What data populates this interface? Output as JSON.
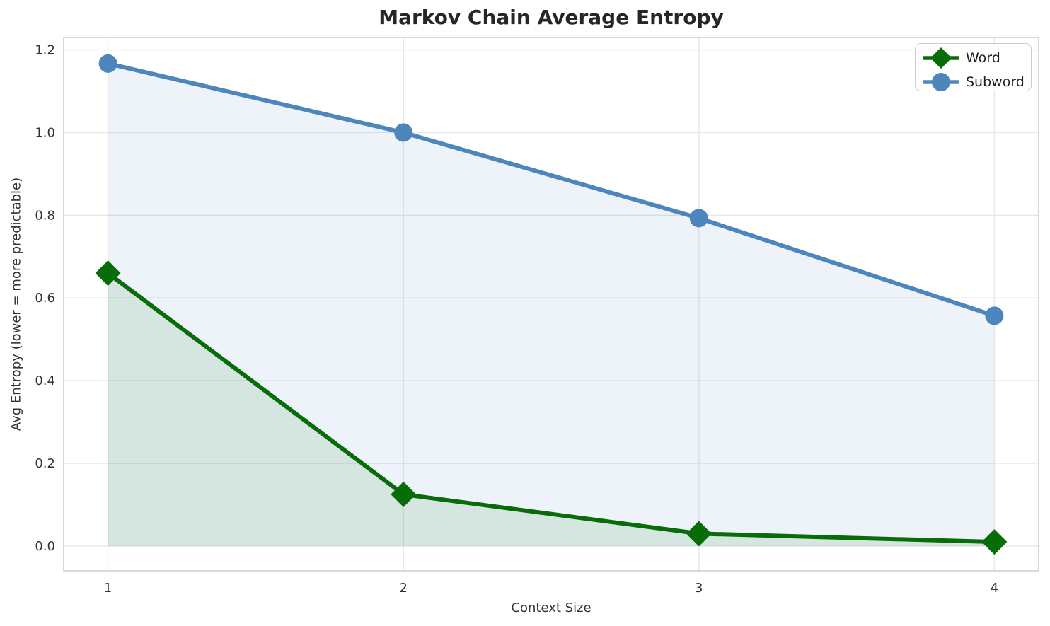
{
  "chart_data": {
    "type": "line",
    "title": "Markov Chain Average Entropy",
    "xlabel": "Context Size",
    "ylabel": "Avg Entropy (lower = more predictable)",
    "x": [
      1,
      2,
      3,
      4
    ],
    "xticks": [
      "1",
      "2",
      "3",
      "4"
    ],
    "yticks": [
      "0.0",
      "0.2",
      "0.4",
      "0.6",
      "0.8",
      "1.0",
      "1.2"
    ],
    "xlim": [
      0.85,
      4.15
    ],
    "ylim": [
      -0.06,
      1.23
    ],
    "grid": true,
    "legend_position": "upper right",
    "area_fill": true,
    "fill_baseline": 0,
    "series": [
      {
        "name": "Word",
        "marker": "diamond",
        "color": "#086d08",
        "fill_color": "rgba(8, 109, 8, 0.10)",
        "values": [
          0.66,
          0.125,
          0.03,
          0.01
        ]
      },
      {
        "name": "Subword",
        "marker": "circle",
        "color": "#4d86bc",
        "fill_color": "rgba(77, 134, 188, 0.10)",
        "values": [
          1.167,
          1.0,
          0.793,
          0.557
        ]
      }
    ],
    "colors": {
      "title": "#262626",
      "tick": "#333333",
      "grid": "#e7e7e7",
      "spine": "#cccccc",
      "background": "#ffffff"
    }
  }
}
